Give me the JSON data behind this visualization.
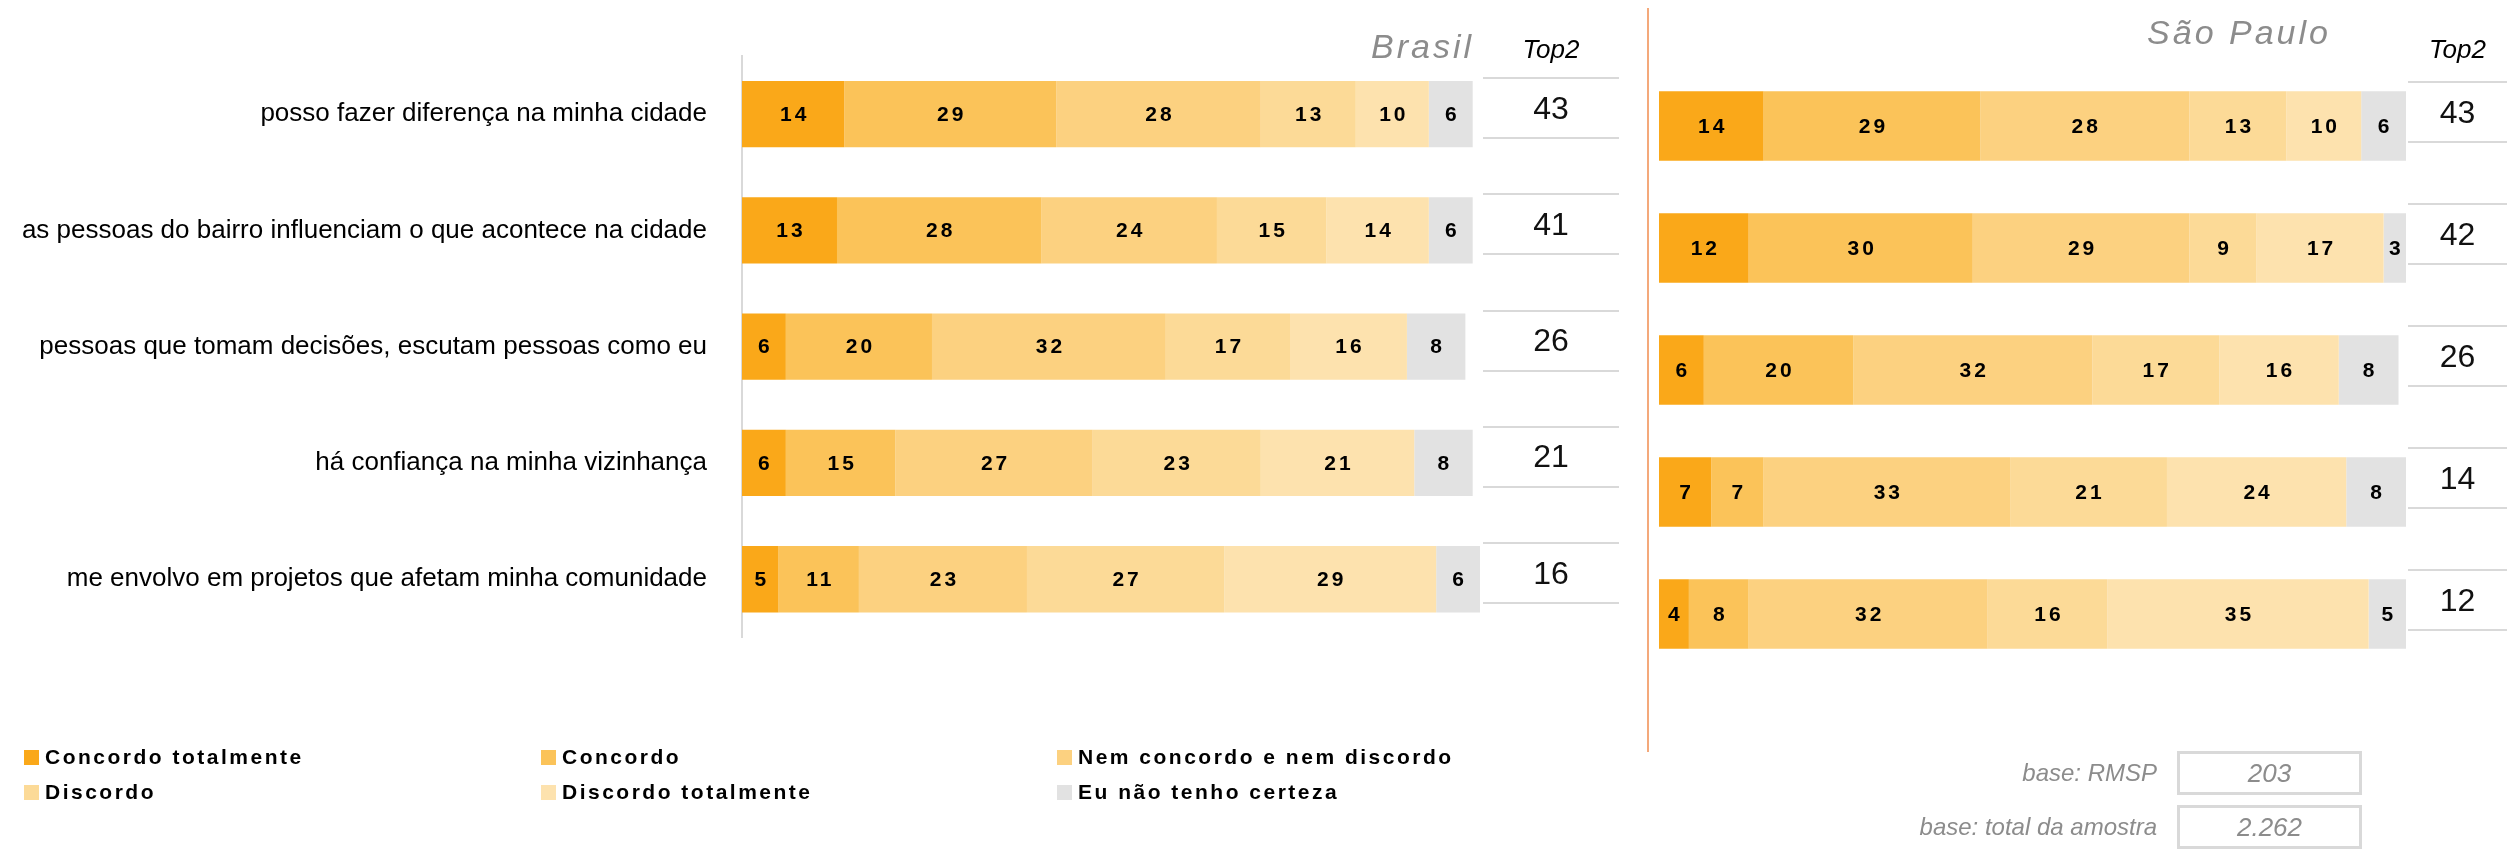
{
  "chart_data": [
    {
      "type": "bar",
      "orientation": "horizontal",
      "stacked": true,
      "title": "Brasil",
      "categories": [
        "posso fazer diferença na minha cidade",
        "as pessoas do bairro influenciam o que acontece na cidade",
        "pessoas que tomam decisões, escutam pessoas como eu",
        "há confiança na minha vizinhança",
        "me envolvo em projetos que afetam minha comunidade"
      ],
      "series": [
        {
          "name": "Concordo totalmente",
          "color": "#faa819",
          "values": [
            14,
            13,
            6,
            6,
            5
          ]
        },
        {
          "name": "Concordo",
          "color": "#fbc359",
          "values": [
            29,
            28,
            20,
            15,
            11
          ]
        },
        {
          "name": "Nem concordo e nem discordo",
          "color": "#fcd180",
          "values": [
            28,
            24,
            32,
            27,
            23
          ]
        },
        {
          "name": "Discordo",
          "color": "#fcda97",
          "values": [
            13,
            15,
            17,
            23,
            27
          ]
        },
        {
          "name": "Discordo totalmente",
          "color": "#fde2ae",
          "values": [
            10,
            14,
            16,
            21,
            29
          ]
        },
        {
          "name": "Eu não tenho certeza",
          "color": "#e2e2e2",
          "values": [
            6,
            6,
            8,
            8,
            6
          ]
        }
      ],
      "data_labels": true,
      "legend": "bottom",
      "tick_labels": "y",
      "annotations": [
        "Top2",
        "43",
        "41",
        "26",
        "21",
        "16"
      ]
    },
    {
      "type": "bar",
      "orientation": "horizontal",
      "stacked": true,
      "title": "São Paulo",
      "categories": [
        null,
        null,
        null,
        null,
        null
      ],
      "series": [
        {
          "color": "#faa819",
          "values": [
            14,
            12,
            6,
            7,
            4
          ]
        },
        {
          "color": "#fbc359",
          "values": [
            29,
            30,
            20,
            7,
            8
          ]
        },
        {
          "color": "#fcd180",
          "values": [
            28,
            29,
            32,
            33,
            32
          ]
        },
        {
          "color": "#fcda97",
          "values": [
            13,
            9,
            17,
            21,
            16
          ]
        },
        {
          "color": "#fde2ae",
          "values": [
            10,
            17,
            16,
            24,
            35
          ]
        },
        {
          "color": "#e2e2e2",
          "values": [
            6,
            3,
            8,
            8,
            5
          ]
        }
      ],
      "data_labels": true,
      "tick_labels": false,
      "annotations": [
        "Top2",
        "43",
        "42",
        "26",
        "14",
        "12",
        "base: RMSP",
        "203",
        "base: total da amostra",
        "2.262"
      ]
    }
  ]
}
